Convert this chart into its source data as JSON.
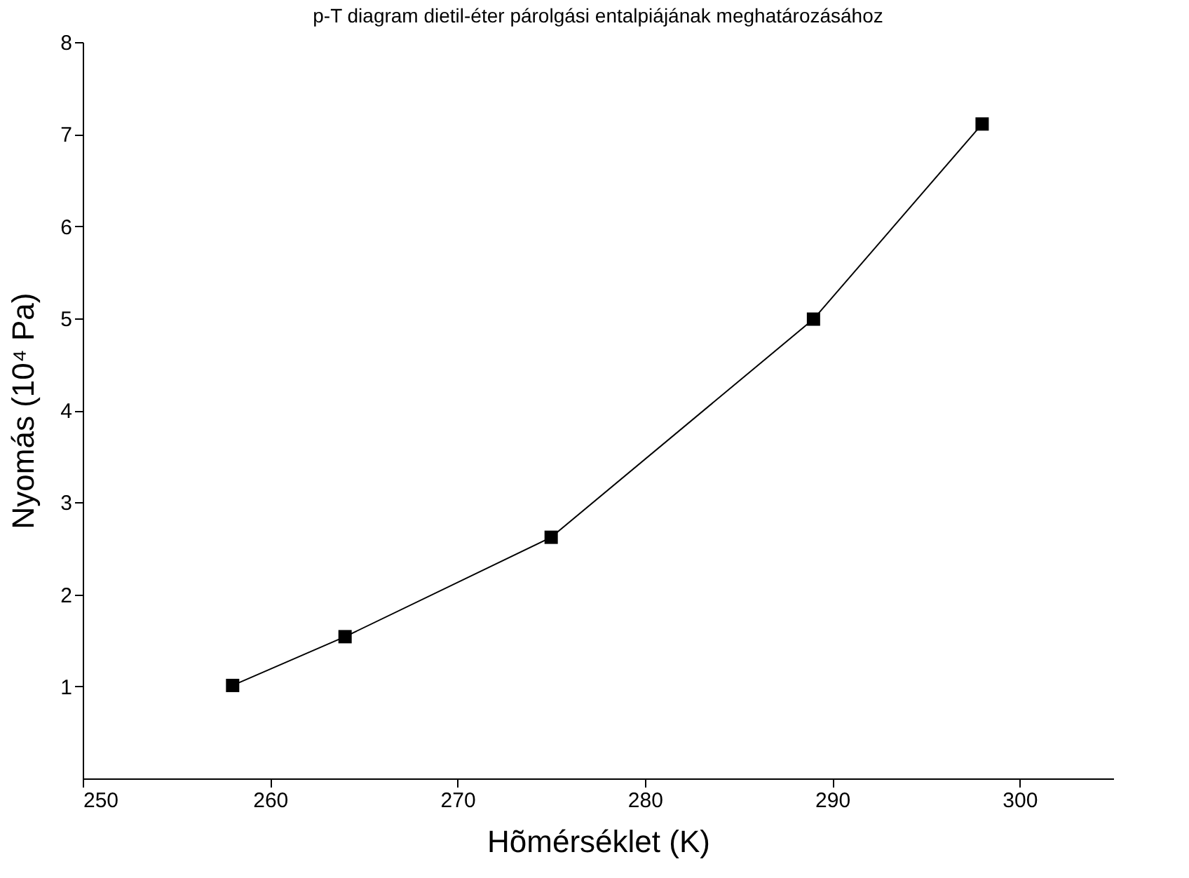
{
  "chart_data": {
    "type": "line",
    "title": "p-T diagram dietil-éter párolgási entalpiájának meghatározásához",
    "xlabel": "Hõmérséklet (K)",
    "ylabel": "Nyomás (10⁴ Pa)",
    "x": [
      258,
      264,
      275,
      289,
      298
    ],
    "series": [
      {
        "color": "#000000",
        "values": [
          1.01,
          1.54,
          2.62,
          4.99,
          7.11
        ]
      }
    ],
    "xlim": [
      250,
      305
    ],
    "xticks": [
      250,
      260,
      270,
      280,
      290,
      300
    ],
    "ylim": [
      0,
      8
    ],
    "yticks": [
      1,
      2,
      3,
      4,
      5,
      6,
      7,
      8
    ],
    "grid": false,
    "legend": false,
    "marker": "square",
    "line_style": "solid"
  }
}
